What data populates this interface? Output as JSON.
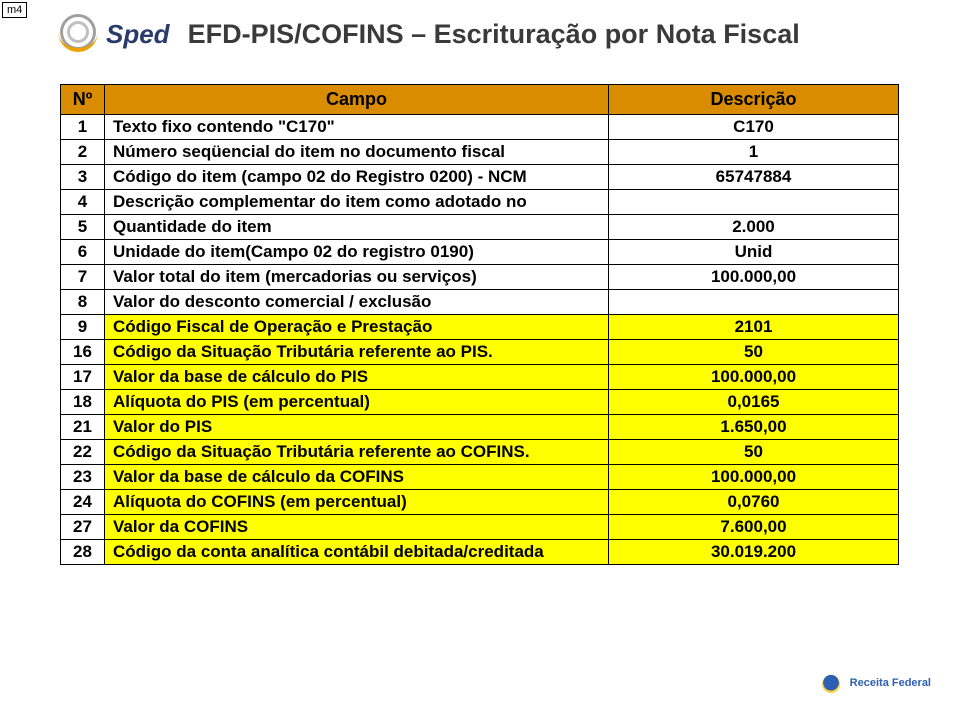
{
  "corner_tag": "m4",
  "logo_text": "Sped",
  "page_title": "EFD-PIS/COFINS – Escrituração por Nota Fiscal",
  "header": {
    "num": "Nº",
    "campo": "Campo",
    "desc": "Descrição"
  },
  "rows": [
    {
      "n": "1",
      "campo": "Texto fixo contendo \"C170\"",
      "desc": "C170",
      "hl": false
    },
    {
      "n": "2",
      "campo": "Número seqüencial do item no documento fiscal",
      "desc": "1",
      "hl": false
    },
    {
      "n": "3",
      "campo": "Código do item (campo 02 do Registro 0200) - NCM",
      "desc": "65747884",
      "hl": false
    },
    {
      "n": "4",
      "campo": "Descrição complementar do item como adotado no",
      "desc": "",
      "hl": false
    },
    {
      "n": "5",
      "campo": "Quantidade do item",
      "desc": "2.000",
      "hl": false
    },
    {
      "n": "6",
      "campo": "Unidade do item(Campo 02 do registro 0190)",
      "desc": "Unid",
      "hl": false
    },
    {
      "n": "7",
      "campo": "Valor total do item (mercadorias ou serviços)",
      "desc": "100.000,00",
      "hl": false
    },
    {
      "n": "8",
      "campo": "Valor do desconto comercial / exclusão",
      "desc": "",
      "hl": false
    },
    {
      "n": "9",
      "campo": "Código Fiscal de Operação e Prestação",
      "desc": "2101",
      "hl": true
    },
    {
      "n": "16",
      "campo": "Código da Situação Tributária referente ao PIS.",
      "desc": "50",
      "hl": true
    },
    {
      "n": "17",
      "campo": "Valor da base de cálculo do PIS",
      "desc": "100.000,00",
      "hl": true
    },
    {
      "n": "18",
      "campo": "Alíquota do PIS (em percentual)",
      "desc": "0,0165",
      "hl": true
    },
    {
      "n": "21",
      "campo": "Valor do PIS",
      "desc": "1.650,00",
      "hl": true
    },
    {
      "n": "22",
      "campo": "Código da Situação Tributária referente ao COFINS.",
      "desc": "50",
      "hl": true
    },
    {
      "n": "23",
      "campo": "Valor da base de cálculo da COFINS",
      "desc": "100.000,00",
      "hl": true
    },
    {
      "n": "24",
      "campo": "Alíquota do COFINS (em percentual)",
      "desc": "0,0760",
      "hl": true
    },
    {
      "n": "27",
      "campo": "Valor da COFINS",
      "desc": "7.600,00",
      "hl": true
    },
    {
      "n": "28",
      "campo": "Código da conta analítica contábil debitada/creditada",
      "desc": "30.019.200",
      "hl": true
    }
  ],
  "footer": {
    "line1": "Receita Federal",
    "line2": ""
  },
  "colors": {
    "header_bg": "#d98c00",
    "highlight_bg": "#ffff00",
    "border": "#000000",
    "title_color": "#3a3a3a",
    "logo_text_color": "#2a3a6a"
  }
}
